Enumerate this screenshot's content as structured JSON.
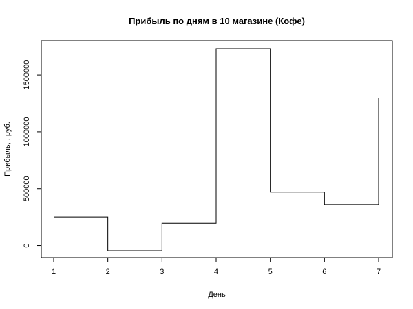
{
  "chart_data": {
    "type": "line",
    "style": "step",
    "title": "Прибыль по дням в 10 магазине (Кофе)",
    "xlabel": "День",
    "ylabel": "Прибыль, . руб.",
    "x": [
      1,
      2,
      3,
      4,
      5,
      6,
      7
    ],
    "series": [
      {
        "values": [
          250000,
          -45000,
          195000,
          1730000,
          470000,
          360000,
          1300000
        ],
        "color": "#000000"
      }
    ],
    "xlim": [
      1,
      7
    ],
    "ylim": [
      -45000,
      1730000
    ],
    "x_ticks": [
      1,
      2,
      3,
      4,
      5,
      6,
      7
    ],
    "y_ticks": [
      0,
      500000,
      1000000,
      1500000
    ],
    "grid": false,
    "legend": "none"
  }
}
